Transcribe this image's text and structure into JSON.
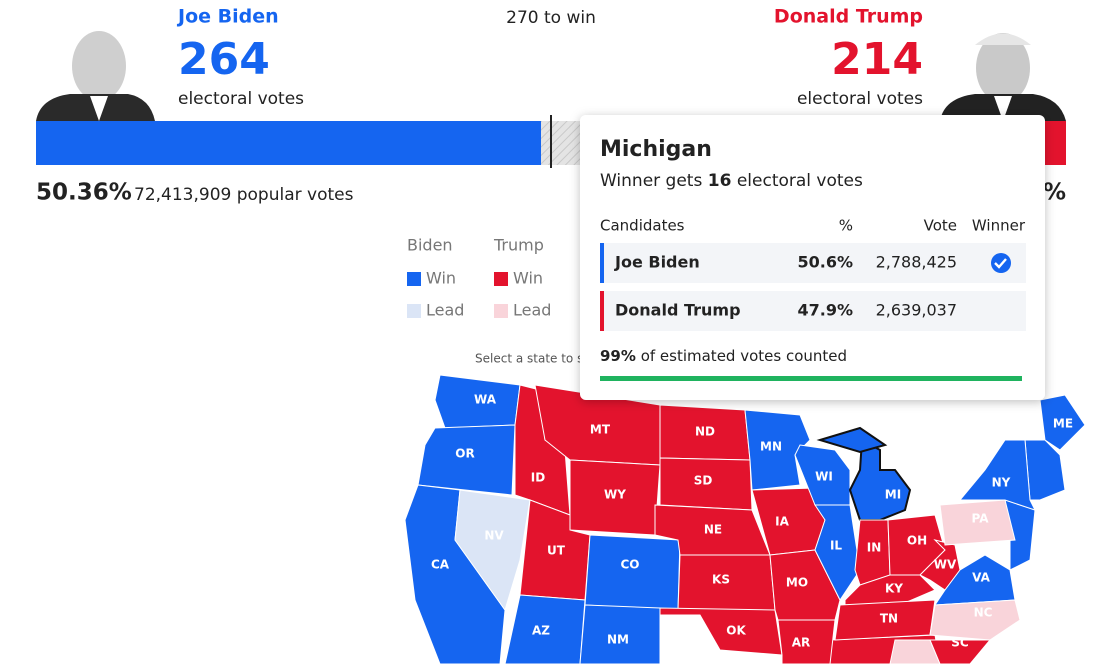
{
  "header": {
    "threshold": "270 to win"
  },
  "candidates": [
    {
      "name": "Joe Biden",
      "electoral_votes": 264,
      "electoral_label": "electoral votes",
      "popular_share": "50.36%",
      "popular_votes": "72,413,909 popular votes",
      "color": "#1565f0",
      "lead_color": "#dbe5f6"
    },
    {
      "name": "Donald Trump",
      "electoral_votes": 214,
      "electoral_label": "electoral votes",
      "popular_share": "%",
      "color": "#e3132d",
      "lead_color": "#f9d4da"
    }
  ],
  "legend": {
    "groups": [
      {
        "name": "Biden",
        "items": [
          "Win",
          "Lead"
        ]
      },
      {
        "name": "Trump",
        "items": [
          "Win",
          "Lead"
        ]
      }
    ]
  },
  "map": {
    "hint": "Select a state to se",
    "states": [
      {
        "abbr": "WA",
        "fill": "#1565f0"
      },
      {
        "abbr": "OR",
        "fill": "#1565f0"
      },
      {
        "abbr": "CA",
        "fill": "#1565f0"
      },
      {
        "abbr": "NV",
        "fill": "#dbe5f6"
      },
      {
        "abbr": "ID",
        "fill": "#e3132d"
      },
      {
        "abbr": "MT",
        "fill": "#e3132d"
      },
      {
        "abbr": "WY",
        "fill": "#e3132d"
      },
      {
        "abbr": "UT",
        "fill": "#e3132d"
      },
      {
        "abbr": "CO",
        "fill": "#1565f0"
      },
      {
        "abbr": "AZ",
        "fill": "#1565f0"
      },
      {
        "abbr": "NM",
        "fill": "#1565f0"
      },
      {
        "abbr": "ND",
        "fill": "#e3132d"
      },
      {
        "abbr": "SD",
        "fill": "#e3132d"
      },
      {
        "abbr": "NE",
        "fill": "#e3132d"
      },
      {
        "abbr": "KS",
        "fill": "#e3132d"
      },
      {
        "abbr": "OK",
        "fill": "#e3132d"
      },
      {
        "abbr": "MN",
        "fill": "#1565f0"
      },
      {
        "abbr": "IA",
        "fill": "#e3132d"
      },
      {
        "abbr": "MO",
        "fill": "#e3132d"
      },
      {
        "abbr": "AR",
        "fill": "#e3132d"
      },
      {
        "abbr": "WI",
        "fill": "#1565f0"
      },
      {
        "abbr": "IL",
        "fill": "#1565f0"
      },
      {
        "abbr": "MI",
        "fill": "#1565f0"
      },
      {
        "abbr": "IN",
        "fill": "#e3132d"
      },
      {
        "abbr": "OH",
        "fill": "#e3132d"
      },
      {
        "abbr": "KY",
        "fill": "#e3132d"
      },
      {
        "abbr": "TN",
        "fill": "#e3132d"
      },
      {
        "abbr": "WV",
        "fill": "#e3132d"
      },
      {
        "abbr": "VA",
        "fill": "#1565f0"
      },
      {
        "abbr": "NC",
        "fill": "#f9d4da"
      },
      {
        "abbr": "SC",
        "fill": "#e3132d"
      },
      {
        "abbr": "PA",
        "fill": "#f9d4da"
      },
      {
        "abbr": "NY",
        "fill": "#1565f0"
      },
      {
        "abbr": "ME",
        "fill": "#1565f0"
      }
    ]
  },
  "popup": {
    "state": "Michigan",
    "subtitle_prefix": "Winner gets",
    "electoral_votes": "16",
    "subtitle_suffix": "electoral votes",
    "columns": [
      "Candidates",
      "%",
      "Vote",
      "Winner"
    ],
    "rows": [
      {
        "name": "Joe Biden",
        "pct": "50.6%",
        "votes": "2,788,425",
        "winner": true
      },
      {
        "name": "Donald Trump",
        "pct": "47.9%",
        "votes": "2,639,037",
        "winner": false
      }
    ],
    "counted": "99%",
    "counted_label": "of estimated votes counted"
  }
}
